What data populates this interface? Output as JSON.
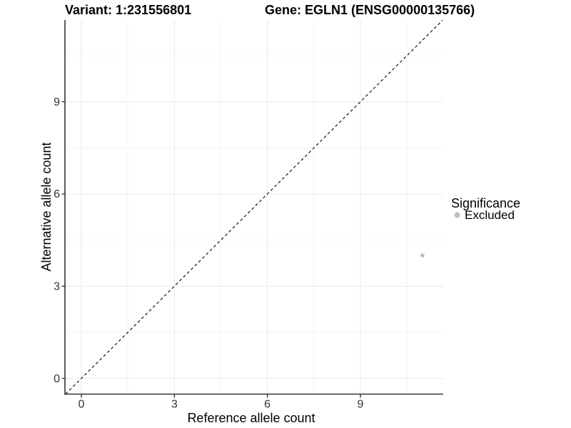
{
  "chart_data": {
    "type": "scatter",
    "titles": {
      "left": "Variant: 1:231556801",
      "right": "Gene: EGLN1 (ENSG00000135766)"
    },
    "xlabel": "Reference allele count",
    "ylabel": "Alternative allele count",
    "x_ticks": [
      0,
      3,
      6,
      9
    ],
    "y_ticks": [
      0,
      3,
      6,
      9
    ],
    "xlim": [
      -0.53,
      11.67
    ],
    "ylim": [
      -0.51,
      11.65
    ],
    "grid": {
      "major": true,
      "minor": true
    },
    "points": [
      {
        "x": 11,
        "y": 4,
        "series": "Excluded"
      }
    ],
    "identity_line": {
      "equation": "y = x",
      "style": "dashed",
      "color": "#111111"
    },
    "legend": {
      "title": "Significance",
      "position": "right",
      "entries": [
        {
          "label": "Excluded",
          "color": "#bebebe"
        }
      ]
    },
    "point_color": "#bfbfbf"
  },
  "colors": {
    "axis_line": "#333333",
    "grid_major": "#e9e9e9",
    "grid_minor": "#f4f4f4",
    "background": "#ffffff"
  }
}
